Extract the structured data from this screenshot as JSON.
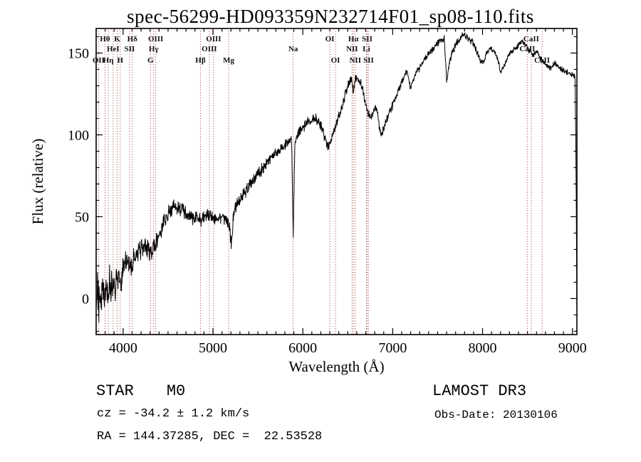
{
  "title": "spec-56299-HD093359N232714F01_sp08-110.fits",
  "footer": {
    "object_type": "STAR",
    "subclass": "M0",
    "cz": "cz = -34.2 ± 1.2 km/s",
    "coords": "RA = 144.37285, DEC =  22.53528",
    "survey": "LAMOST DR3",
    "obs_date": "Obs-Date: 20130106"
  },
  "chart_data": {
    "type": "line",
    "title": "spec-56299-HD093359N232714F01_sp08-110.fits",
    "xlabel": "Wavelength (Å)",
    "ylabel": "Flux (relative)",
    "xlim": [
      3700,
      9050
    ],
    "ylim": [
      -22,
      165
    ],
    "xticks": [
      4000,
      5000,
      6000,
      7000,
      8000,
      9000
    ],
    "yticks": [
      0,
      50,
      100,
      150
    ],
    "x_minor_step": 100,
    "y_minor_step": 10,
    "grid": false,
    "legend": false,
    "series_color": "#000000",
    "marker_color": "#993333",
    "noise_profile": [
      [
        4000,
        13
      ],
      [
        4300,
        8
      ],
      [
        4800,
        6
      ],
      [
        5600,
        5
      ],
      [
        6300,
        4
      ],
      [
        7000,
        3.5
      ],
      [
        8000,
        2.5
      ],
      [
        9100,
        2
      ]
    ],
    "spectral_lines": [
      {
        "label": "Hθ",
        "wavelength": 3798,
        "row": 0
      },
      {
        "label": "K",
        "wavelength": 3934,
        "row": 0
      },
      {
        "label": "Hδ",
        "wavelength": 4102,
        "row": 0
      },
      {
        "label": "OIII",
        "wavelength": 4363,
        "row": 0
      },
      {
        "label": "OIII",
        "wavelength": 5007,
        "row": 0
      },
      {
        "label": "OI",
        "wavelength": 6300,
        "row": 0
      },
      {
        "label": "Hα",
        "wavelength": 6563,
        "row": 0
      },
      {
        "label": "SII",
        "wavelength": 6716,
        "row": 0
      },
      {
        "label": "CaII",
        "wavelength": 8542,
        "row": 0
      },
      {
        "label": "HeI",
        "wavelength": 3889,
        "row": 1
      },
      {
        "label": "SII",
        "wavelength": 4072,
        "row": 1
      },
      {
        "label": "Hγ",
        "wavelength": 4340,
        "row": 1
      },
      {
        "label": "OIII",
        "wavelength": 4959,
        "row": 1
      },
      {
        "label": "Na",
        "wavelength": 5893,
        "row": 1
      },
      {
        "label": "NII",
        "wavelength": 6548,
        "row": 1
      },
      {
        "label": "Li",
        "wavelength": 6708,
        "row": 1
      },
      {
        "label": "CaII",
        "wavelength": 8498,
        "row": 1
      },
      {
        "label": "OII",
        "wavelength": 3727,
        "row": 2
      },
      {
        "label": "Hη",
        "wavelength": 3835,
        "row": 2
      },
      {
        "label": "H",
        "wavelength": 3968,
        "row": 2
      },
      {
        "label": "G",
        "wavelength": 4305,
        "row": 2
      },
      {
        "label": "Hβ",
        "wavelength": 4861,
        "row": 2
      },
      {
        "label": "Mg",
        "wavelength": 5175,
        "row": 2
      },
      {
        "label": "OI",
        "wavelength": 6363,
        "row": 2
      },
      {
        "label": "NII",
        "wavelength": 6583,
        "row": 2
      },
      {
        "label": "SII",
        "wavelength": 6731,
        "row": 2
      },
      {
        "label": "CaII",
        "wavelength": 8662,
        "row": 2
      }
    ],
    "spectrum_anchor_points": [
      [
        3700,
        -6
      ],
      [
        3715,
        7
      ],
      [
        3730,
        -4
      ],
      [
        3745,
        6
      ],
      [
        3760,
        1
      ],
      [
        3775,
        8
      ],
      [
        3790,
        3
      ],
      [
        3805,
        10
      ],
      [
        3820,
        2
      ],
      [
        3835,
        6
      ],
      [
        3850,
        11
      ],
      [
        3865,
        5
      ],
      [
        3880,
        9
      ],
      [
        3895,
        13
      ],
      [
        3910,
        8
      ],
      [
        3925,
        14
      ],
      [
        3940,
        9
      ],
      [
        3955,
        15
      ],
      [
        3970,
        11
      ],
      [
        3985,
        16
      ],
      [
        4000,
        18
      ],
      [
        4030,
        22
      ],
      [
        4060,
        21
      ],
      [
        4090,
        18
      ],
      [
        4120,
        24
      ],
      [
        4150,
        27
      ],
      [
        4180,
        30
      ],
      [
        4210,
        31
      ],
      [
        4240,
        33
      ],
      [
        4270,
        31
      ],
      [
        4300,
        28
      ],
      [
        4330,
        31
      ],
      [
        4360,
        34
      ],
      [
        4390,
        38
      ],
      [
        4420,
        42
      ],
      [
        4450,
        46
      ],
      [
        4480,
        50
      ],
      [
        4510,
        52
      ],
      [
        4540,
        54
      ],
      [
        4570,
        56
      ],
      [
        4600,
        56
      ],
      [
        4630,
        55
      ],
      [
        4660,
        54
      ],
      [
        4690,
        52
      ],
      [
        4720,
        51
      ],
      [
        4750,
        50
      ],
      [
        4780,
        50
      ],
      [
        4810,
        50
      ],
      [
        4840,
        49
      ],
      [
        4861,
        47
      ],
      [
        4890,
        49
      ],
      [
        4920,
        51
      ],
      [
        4950,
        52
      ],
      [
        4980,
        51
      ],
      [
        5010,
        49
      ],
      [
        5040,
        49
      ],
      [
        5070,
        50
      ],
      [
        5100,
        50
      ],
      [
        5130,
        49
      ],
      [
        5160,
        47
      ],
      [
        5185,
        44
      ],
      [
        5205,
        31
      ],
      [
        5225,
        48
      ],
      [
        5250,
        55
      ],
      [
        5280,
        58
      ],
      [
        5310,
        61
      ],
      [
        5340,
        64
      ],
      [
        5370,
        66
      ],
      [
        5400,
        69
      ],
      [
        5430,
        71
      ],
      [
        5460,
        73
      ],
      [
        5490,
        75
      ],
      [
        5520,
        77
      ],
      [
        5550,
        79
      ],
      [
        5580,
        82
      ],
      [
        5610,
        84
      ],
      [
        5640,
        85
      ],
      [
        5670,
        87
      ],
      [
        5700,
        89
      ],
      [
        5730,
        90
      ],
      [
        5760,
        92
      ],
      [
        5790,
        93
      ],
      [
        5820,
        95
      ],
      [
        5850,
        96
      ],
      [
        5875,
        97
      ],
      [
        5893,
        38
      ],
      [
        5912,
        95
      ],
      [
        5940,
        100
      ],
      [
        5970,
        102
      ],
      [
        6000,
        104
      ],
      [
        6040,
        107
      ],
      [
        6080,
        108
      ],
      [
        6120,
        110
      ],
      [
        6160,
        109
      ],
      [
        6200,
        106
      ],
      [
        6240,
        99
      ],
      [
        6270,
        93
      ],
      [
        6300,
        94
      ],
      [
        6330,
        99
      ],
      [
        6360,
        104
      ],
      [
        6400,
        111
      ],
      [
        6440,
        118
      ],
      [
        6480,
        126
      ],
      [
        6520,
        133
      ],
      [
        6545,
        135
      ],
      [
        6563,
        126
      ],
      [
        6585,
        134
      ],
      [
        6610,
        135
      ],
      [
        6640,
        132
      ],
      [
        6670,
        126
      ],
      [
        6700,
        119
      ],
      [
        6730,
        113
      ],
      [
        6760,
        111
      ],
      [
        6790,
        114
      ],
      [
        6820,
        117
      ],
      [
        6850,
        106
      ],
      [
        6870,
        100
      ],
      [
        6895,
        103
      ],
      [
        6925,
        108
      ],
      [
        6955,
        112
      ],
      [
        6985,
        116
      ],
      [
        7015,
        120
      ],
      [
        7050,
        125
      ],
      [
        7090,
        131
      ],
      [
        7130,
        136
      ],
      [
        7165,
        139
      ],
      [
        7195,
        128
      ],
      [
        7225,
        133
      ],
      [
        7260,
        138
      ],
      [
        7300,
        141
      ],
      [
        7340,
        145
      ],
      [
        7380,
        148
      ],
      [
        7420,
        151
      ],
      [
        7460,
        153
      ],
      [
        7500,
        156
      ],
      [
        7540,
        158
      ],
      [
        7575,
        159
      ],
      [
        7600,
        133
      ],
      [
        7625,
        142
      ],
      [
        7660,
        150
      ],
      [
        7700,
        155
      ],
      [
        7740,
        158
      ],
      [
        7780,
        161
      ],
      [
        7820,
        160
      ],
      [
        7860,
        158
      ],
      [
        7900,
        156
      ],
      [
        7940,
        150
      ],
      [
        7980,
        145
      ],
      [
        8010,
        144
      ],
      [
        8050,
        151
      ],
      [
        8090,
        153
      ],
      [
        8130,
        151
      ],
      [
        8170,
        146
      ],
      [
        8200,
        139
      ],
      [
        8240,
        142
      ],
      [
        8280,
        148
      ],
      [
        8320,
        151
      ],
      [
        8360,
        153
      ],
      [
        8400,
        155
      ],
      [
        8440,
        157
      ],
      [
        8480,
        155
      ],
      [
        8520,
        151
      ],
      [
        8560,
        149
      ],
      [
        8600,
        151
      ],
      [
        8640,
        147
      ],
      [
        8680,
        144
      ],
      [
        8720,
        142
      ],
      [
        8760,
        141
      ],
      [
        8800,
        144
      ],
      [
        8840,
        142
      ],
      [
        8880,
        140
      ],
      [
        8920,
        139
      ],
      [
        8960,
        138
      ],
      [
        9000,
        137
      ],
      [
        9030,
        136
      ],
      [
        9042,
        70
      ],
      [
        9050,
        -15
      ]
    ]
  }
}
